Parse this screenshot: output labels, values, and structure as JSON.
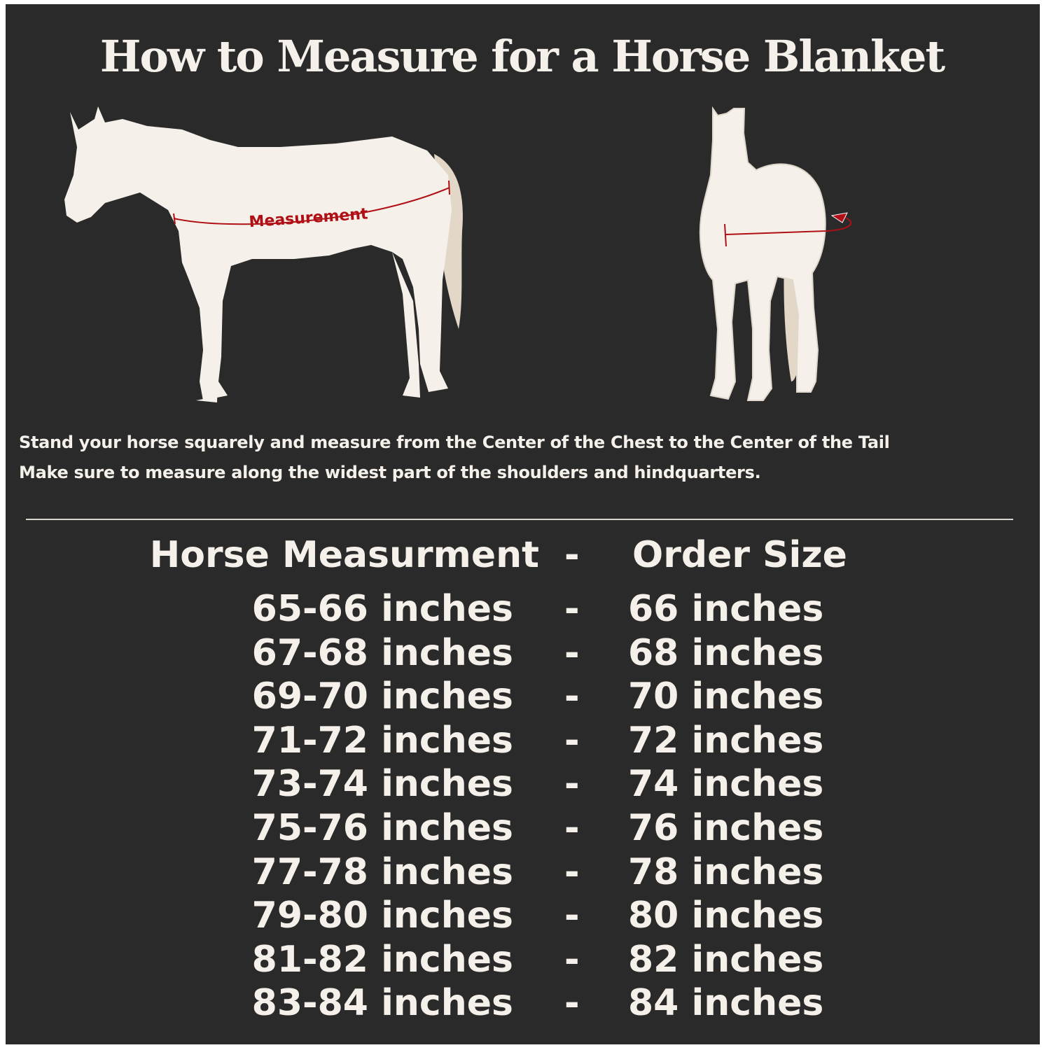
{
  "title": "How to Measure for a Horse Blanket",
  "diagram": {
    "measurement_label": "Measurement",
    "measurement_color": "#b01015",
    "horse_color": "#f5f1ea",
    "tail_color": "#e3d8c8",
    "background_color": "#2b2a2b"
  },
  "instructions": [
    "Stand your horse squarely and measure from the Center of the Chest to the Center of the Tail",
    "Make sure to measure along the widest part of the shoulders and hindquarters."
  ],
  "table": {
    "header": {
      "measurement": "Horse Measurment",
      "separator": "-",
      "size": "Order Size"
    },
    "rows": [
      {
        "measurement": "65-66 inches",
        "separator": "-",
        "size": "66 inches"
      },
      {
        "measurement": "67-68 inches",
        "separator": "-",
        "size": "68 inches"
      },
      {
        "measurement": "69-70 inches",
        "separator": "-",
        "size": "70 inches"
      },
      {
        "measurement": "71-72 inches",
        "separator": "-",
        "size": "72 inches"
      },
      {
        "measurement": "73-74 inches",
        "separator": "-",
        "size": "74 inches"
      },
      {
        "measurement": "75-76 inches",
        "separator": "-",
        "size": "76 inches"
      },
      {
        "measurement": "77-78 inches",
        "separator": "-",
        "size": "78 inches"
      },
      {
        "measurement": "79-80 inches",
        "separator": "-",
        "size": "80 inches"
      },
      {
        "measurement": "81-82 inches",
        "separator": "-",
        "size": "82 inches"
      },
      {
        "measurement": "83-84 inches",
        "separator": "-",
        "size": "84 inches"
      }
    ]
  }
}
